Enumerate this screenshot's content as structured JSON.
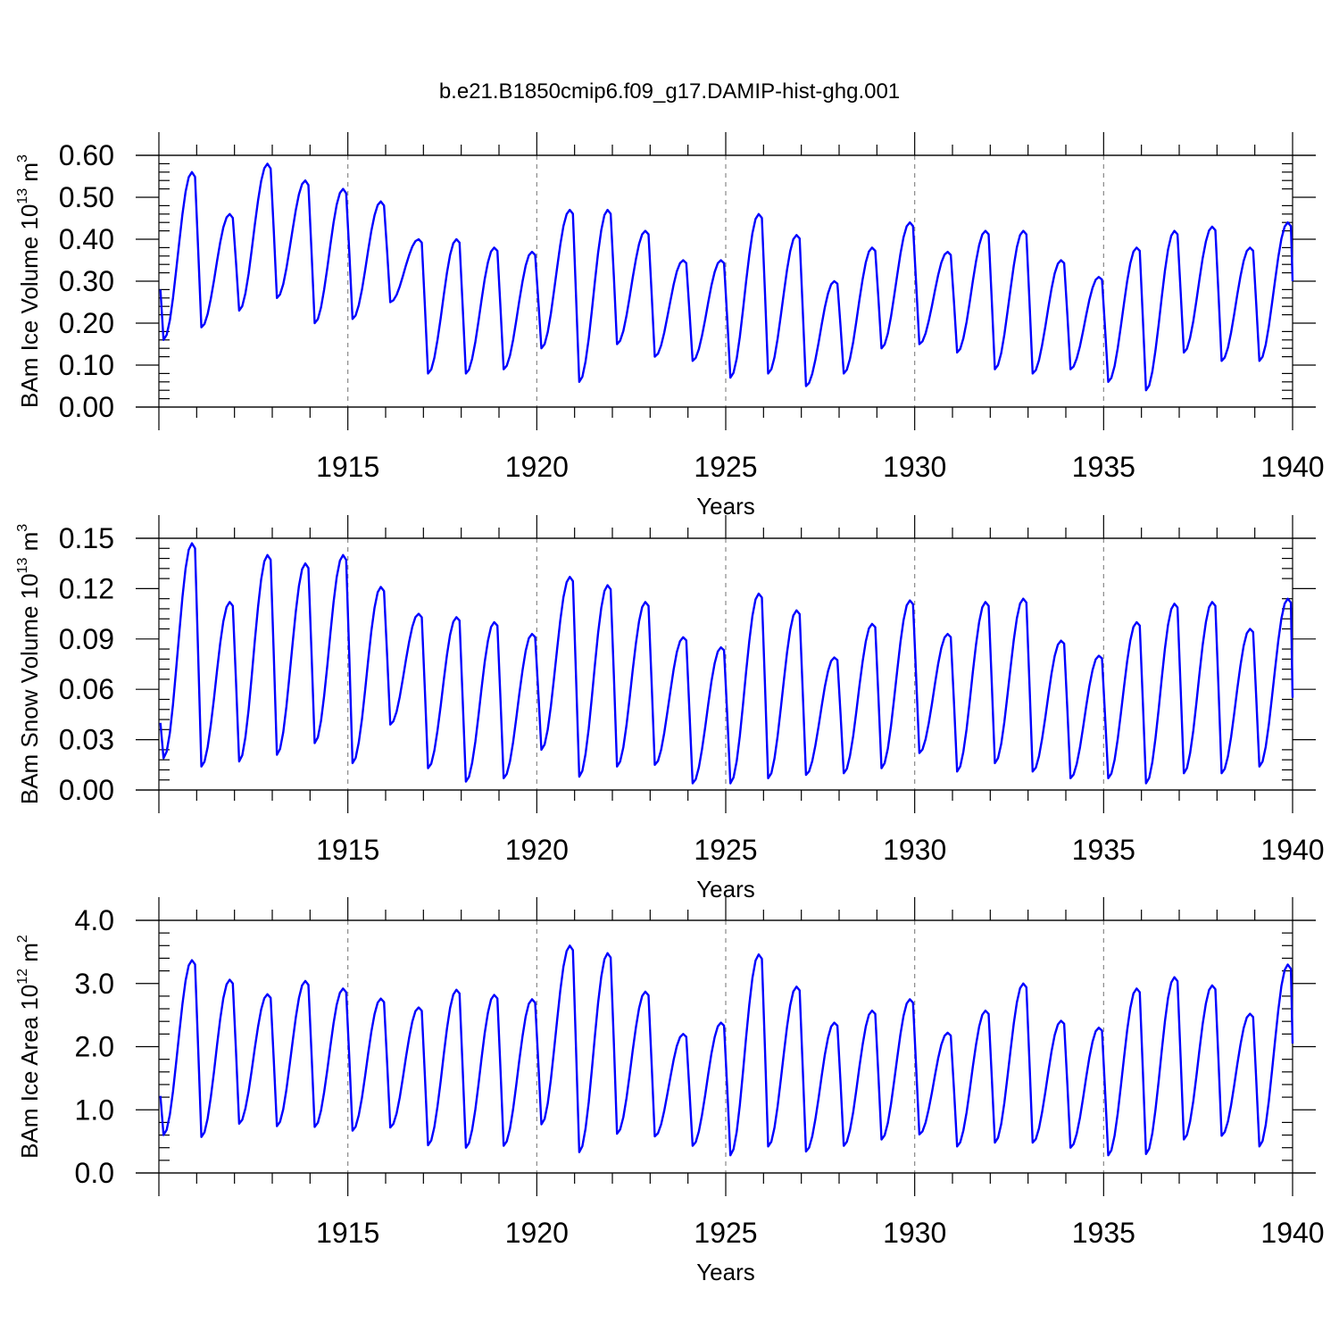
{
  "figure_title": "b.e21.B1850cmip6.f09_g17.DAMIP-hist-ghg.001",
  "series_color": "#0000ff",
  "chart_data": [
    {
      "type": "line",
      "title": "b.e21.B1850cmip6.f09_g17.DAMIP-hist-ghg.001",
      "ylabel": "BAm Ice Volume 10",
      "ylabel_exp": "13",
      "ylabel_unit": " m",
      "ylabel_unit_exp": "3",
      "xlabel": "Years",
      "xlim": [
        1910,
        1940
      ],
      "ylim": [
        0,
        0.6
      ],
      "xticks": [
        1915,
        1920,
        1925,
        1930,
        1935,
        1940
      ],
      "xtick_labels": [
        "1915",
        "1920",
        "1925",
        "1930",
        "1935",
        "1940"
      ],
      "yticks": [
        0,
        0.1,
        0.2,
        0.3,
        0.4,
        0.5,
        0.6
      ],
      "ytick_labels": [
        "0.00",
        "0.10",
        "0.20",
        "0.30",
        "0.40",
        "0.50",
        "0.60"
      ],
      "grid_x_dashed": true,
      "series": [
        {
          "name": "BAm Ice Volume",
          "start_year": 1910.04,
          "step": 0.08333,
          "maxima": [
            0.56,
            0.46,
            0.58,
            0.54,
            0.52,
            0.49,
            0.4,
            0.4,
            0.38,
            0.37,
            0.47,
            0.47,
            0.42,
            0.35,
            0.35,
            0.46,
            0.41,
            0.3,
            0.38,
            0.44,
            0.37,
            0.42,
            0.42,
            0.35,
            0.31,
            0.38,
            0.42,
            0.43,
            0.38,
            0.44
          ],
          "minima": [
            0.16,
            0.19,
            0.23,
            0.26,
            0.2,
            0.21,
            0.25,
            0.08,
            0.08,
            0.09,
            0.14,
            0.06,
            0.15,
            0.12,
            0.11,
            0.07,
            0.08,
            0.05,
            0.08,
            0.14,
            0.15,
            0.13,
            0.09,
            0.08,
            0.09,
            0.06,
            0.04,
            0.13,
            0.11,
            0.11
          ],
          "start_value": 0.28,
          "end_value": 0.3
        }
      ]
    },
    {
      "type": "line",
      "ylabel": "BAm Snow Volume 10",
      "ylabel_exp": "13",
      "ylabel_unit": " m",
      "ylabel_unit_exp": "3",
      "xlabel": "Years",
      "xlim": [
        1910,
        1940
      ],
      "ylim": [
        0,
        0.15
      ],
      "xticks": [
        1915,
        1920,
        1925,
        1930,
        1935,
        1940
      ],
      "xtick_labels": [
        "1915",
        "1920",
        "1925",
        "1930",
        "1935",
        "1940"
      ],
      "yticks": [
        0,
        0.03,
        0.06,
        0.09,
        0.12,
        0.15
      ],
      "ytick_labels": [
        "0.00",
        "0.03",
        "0.06",
        "0.09",
        "0.12",
        "0.15"
      ],
      "grid_x_dashed": true,
      "series": [
        {
          "name": "BAm Snow Volume",
          "start_year": 1910.04,
          "step": 0.08333,
          "maxima": [
            0.147,
            0.112,
            0.14,
            0.135,
            0.14,
            0.121,
            0.105,
            0.103,
            0.1,
            0.093,
            0.127,
            0.122,
            0.112,
            0.091,
            0.085,
            0.117,
            0.107,
            0.079,
            0.099,
            0.113,
            0.093,
            0.112,
            0.114,
            0.089,
            0.08,
            0.1,
            0.111,
            0.112,
            0.096,
            0.114
          ],
          "minima": [
            0.019,
            0.014,
            0.017,
            0.021,
            0.028,
            0.016,
            0.039,
            0.013,
            0.005,
            0.007,
            0.024,
            0.008,
            0.014,
            0.015,
            0.004,
            0.004,
            0.007,
            0.009,
            0.01,
            0.013,
            0.022,
            0.011,
            0.016,
            0.011,
            0.007,
            0.007,
            0.004,
            0.01,
            0.01,
            0.014
          ],
          "start_value": 0.04,
          "end_value": 0.055
        }
      ]
    },
    {
      "type": "line",
      "ylabel": "BAm Ice Area 10",
      "ylabel_exp": "12",
      "ylabel_unit": " m",
      "ylabel_unit_exp": "2",
      "xlabel": "Years",
      "xlim": [
        1910,
        1940
      ],
      "ylim": [
        0,
        4.0
      ],
      "xticks": [
        1915,
        1920,
        1925,
        1930,
        1935,
        1940
      ],
      "xtick_labels": [
        "1915",
        "1920",
        "1925",
        "1930",
        "1935",
        "1940"
      ],
      "yticks": [
        0,
        1,
        2,
        3,
        4
      ],
      "ytick_labels": [
        "0.0",
        "1.0",
        "2.0",
        "3.0",
        "4.0"
      ],
      "grid_x_dashed": true,
      "series": [
        {
          "name": "BAm Ice Area",
          "start_year": 1910.04,
          "step": 0.08333,
          "maxima": [
            3.37,
            3.06,
            2.83,
            3.04,
            2.92,
            2.76,
            2.62,
            2.9,
            2.82,
            2.75,
            3.6,
            3.48,
            2.87,
            2.2,
            2.38,
            3.46,
            2.95,
            2.38,
            2.57,
            2.75,
            2.22,
            2.57,
            3.0,
            2.41,
            2.3,
            2.92,
            3.1,
            2.97,
            2.52,
            3.3
          ],
          "minima": [
            0.6,
            0.57,
            0.78,
            0.74,
            0.73,
            0.67,
            0.72,
            0.44,
            0.4,
            0.43,
            0.77,
            0.33,
            0.62,
            0.58,
            0.43,
            0.28,
            0.42,
            0.34,
            0.43,
            0.53,
            0.61,
            0.42,
            0.48,
            0.48,
            0.4,
            0.28,
            0.3,
            0.53,
            0.59,
            0.42
          ],
          "start_value": 1.22,
          "end_value": 2.05
        }
      ]
    }
  ]
}
